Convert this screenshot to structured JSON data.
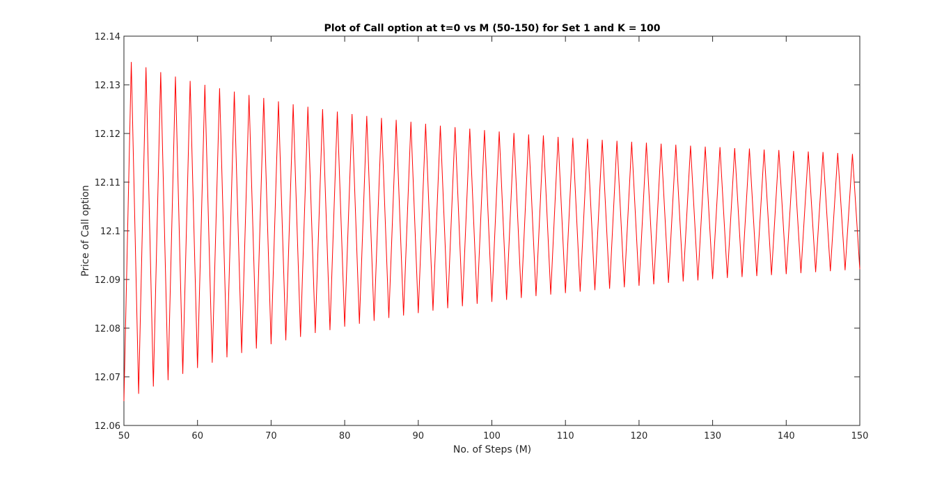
{
  "chart_data": {
    "type": "line",
    "title": "Plot of Call option at t=0 vs M (50-150) for Set 1 and K = 100",
    "xlabel": "No. of Steps (M)",
    "ylabel": "Price of Call option",
    "xlim": [
      50,
      150
    ],
    "ylim": [
      12.06,
      12.14
    ],
    "x_ticks": [
      "50",
      "60",
      "70",
      "80",
      "90",
      "100",
      "110",
      "120",
      "130",
      "140",
      "150"
    ],
    "y_ticks": [
      "12.06",
      "12.07",
      "12.08",
      "12.09",
      "12.1",
      "12.11",
      "12.12",
      "12.13",
      "12.14"
    ],
    "grid": false,
    "series": [
      {
        "color": "#ff0000",
        "x": [
          50,
          51,
          52,
          53,
          54,
          55,
          56,
          57,
          58,
          59,
          60,
          61,
          62,
          63,
          64,
          65,
          66,
          67,
          68,
          69,
          70,
          71,
          72,
          73,
          74,
          75,
          76,
          77,
          78,
          79,
          80,
          81,
          82,
          83,
          84,
          85,
          86,
          87,
          88,
          89,
          90,
          91,
          92,
          93,
          94,
          95,
          96,
          97,
          98,
          99,
          100,
          101,
          102,
          103,
          104,
          105,
          106,
          107,
          108,
          109,
          110,
          111,
          112,
          113,
          114,
          115,
          116,
          117,
          118,
          119,
          120,
          121,
          122,
          123,
          124,
          125,
          126,
          127,
          128,
          129,
          130,
          131,
          132,
          133,
          134,
          135,
          136,
          137,
          138,
          139,
          140,
          141,
          142,
          143,
          144,
          145,
          146,
          147,
          148,
          149,
          150
        ],
        "values": [
          12.065,
          12.1347,
          12.0665,
          12.1336,
          12.068,
          12.1326,
          12.0693,
          12.1317,
          12.0706,
          12.1308,
          12.0718,
          12.13,
          12.0729,
          12.1293,
          12.074,
          12.1286,
          12.0749,
          12.1279,
          12.0758,
          12.1273,
          12.0767,
          12.1266,
          12.0775,
          12.126,
          12.0782,
          12.1255,
          12.079,
          12.125,
          12.0796,
          12.1245,
          12.0803,
          12.124,
          12.0809,
          12.1236,
          12.0815,
          12.1232,
          12.0821,
          12.1228,
          12.0826,
          12.1224,
          12.0831,
          12.122,
          12.0836,
          12.1216,
          12.0841,
          12.1213,
          12.0845,
          12.121,
          12.085,
          12.1207,
          12.0854,
          12.1204,
          12.0858,
          12.1201,
          12.0862,
          12.1198,
          12.0866,
          12.1196,
          12.0869,
          12.1193,
          12.0872,
          12.1191,
          12.0875,
          12.1189,
          12.0878,
          12.1187,
          12.0881,
          12.1185,
          12.0884,
          12.1183,
          12.0887,
          12.1181,
          12.089,
          12.1179,
          12.0893,
          12.1177,
          12.0896,
          12.1175,
          12.0898,
          12.1173,
          12.0901,
          12.1172,
          12.0903,
          12.117,
          12.0905,
          12.1169,
          12.0907,
          12.1167,
          12.0909,
          12.1166,
          12.0911,
          12.1164,
          12.0913,
          12.1163,
          12.0915,
          12.1162,
          12.0917,
          12.116,
          12.0919,
          12.1158,
          12.0921
        ]
      }
    ]
  }
}
